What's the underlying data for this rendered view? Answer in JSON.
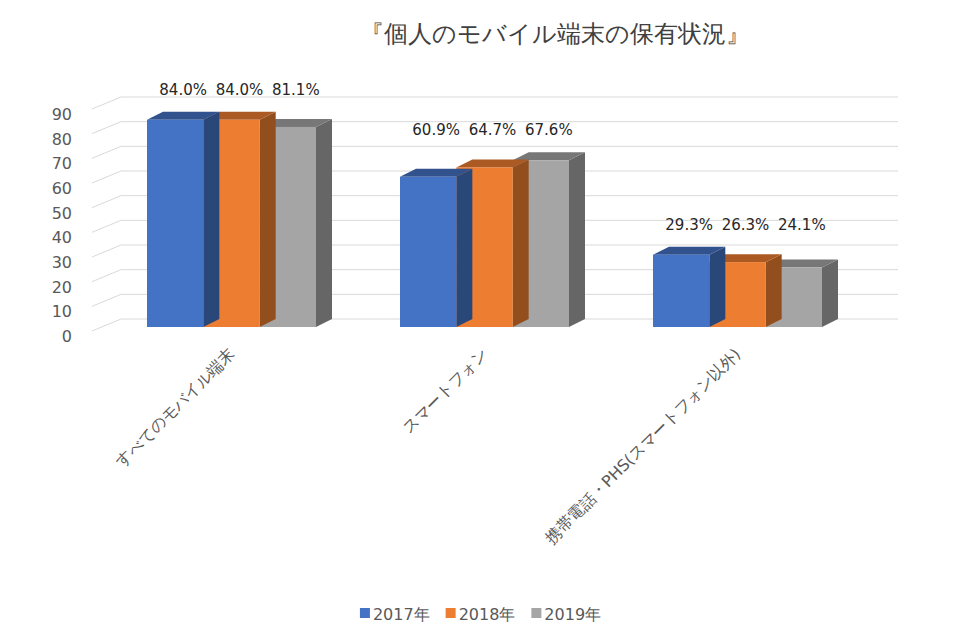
{
  "chart_data": {
    "type": "bar",
    "title": "『個人のモバイル端末の保有状況』",
    "categories": [
      "すべてのモバイル端末",
      "スマートフォン",
      "携帯電話・PHS(スマートフォン以外)"
    ],
    "series": [
      {
        "name": "2017年",
        "color": "#4472c4",
        "values": [
          84,
          60.9,
          29.3
        ],
        "value_labels": [
          "84.0%",
          "60.9%",
          "29.3%"
        ]
      },
      {
        "name": "2018年",
        "color": "#ed7d31",
        "values": [
          84,
          64.7,
          26.3
        ],
        "value_labels": [
          "84.0%",
          "64.7%",
          "26.3%"
        ]
      },
      {
        "name": "2019年",
        "color": "#a5a5a5",
        "values": [
          81.1,
          67.6,
          24.1
        ],
        "value_labels": [
          "81.1%",
          "67.6%",
          "24.1%"
        ]
      }
    ],
    "ylim": [
      0,
      90
    ],
    "yticks": [
      0,
      10,
      20,
      30,
      40,
      50,
      60,
      70,
      80,
      90
    ],
    "grid": true,
    "legend": "bottom",
    "data_labels": true
  }
}
